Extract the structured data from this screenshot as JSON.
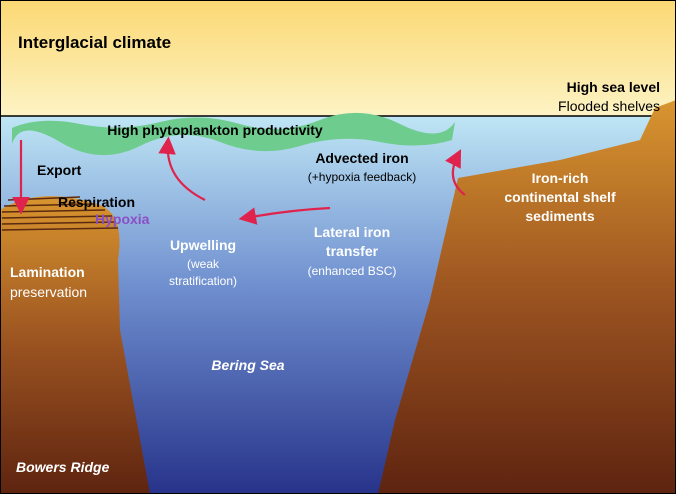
{
  "title": "Interglacial climate",
  "sea_level": {
    "title": "High sea level",
    "subtitle": "Flooded shelves"
  },
  "labels": {
    "productivity": "High phytoplankton productivity",
    "export": "Export",
    "respiration": "Respiration",
    "hypoxia": "Hypoxia",
    "advected_iron": "Advected iron",
    "advected_note": "(+hypoxia feedback)",
    "iron_rich": [
      "Iron-rich",
      "continental shelf",
      "sediments"
    ],
    "upwelling": "Upwelling",
    "upwelling_note": [
      "(weak",
      "stratification)"
    ],
    "lateral": [
      "Lateral iron",
      "transfer"
    ],
    "lateral_note": "(enhanced BSC)",
    "lamination": "Lamination",
    "preservation": "preservation",
    "bering_sea": "Bering Sea",
    "bowers_ridge": "Bowers Ridge"
  }
}
